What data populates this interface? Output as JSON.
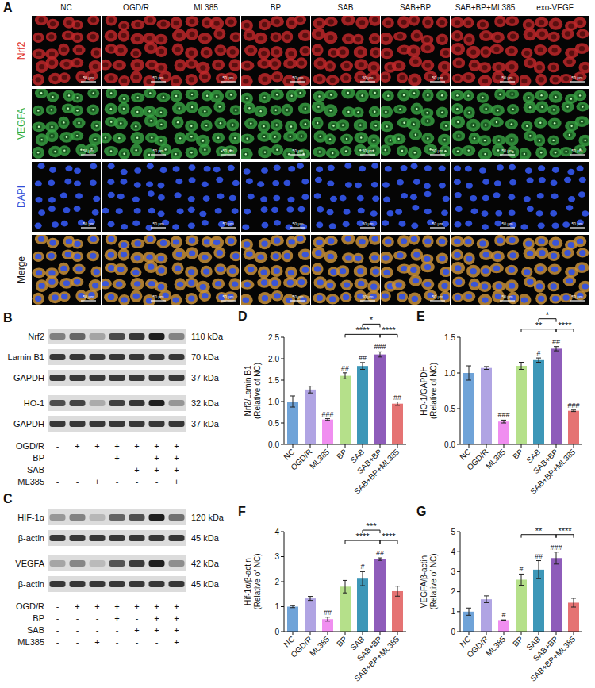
{
  "panel_a": {
    "letter": "A",
    "columns": [
      "NC",
      "OGD/R",
      "ML385",
      "BP",
      "SAB",
      "SAB+BP",
      "SAB+BP+ML385",
      "exo-VEGF"
    ],
    "rows": [
      {
        "label": "Nrf2",
        "color": "#e0302a"
      },
      {
        "label": "VEGFA",
        "color": "#2fae3a"
      },
      {
        "label": "DAPI",
        "color": "#2f4fd8"
      },
      {
        "label": "Merge",
        "color": "#111111"
      }
    ],
    "scale_bar": "50 μm"
  },
  "blot_panels": [
    {
      "letter": "B",
      "blots": [
        [
          {
            "label": "Nrf2",
            "kda": "110 kDa",
            "chart": 0
          },
          {
            "label": "Lamin B1",
            "kda": "70 kDa",
            "chart": null
          },
          {
            "label": "GAPDH",
            "kda": "37 kDa",
            "chart": null
          }
        ],
        [
          {
            "label": "HO-1",
            "kda": "32 kDa",
            "chart": 1
          },
          {
            "label": "GAPDH",
            "kda": "37 kDa",
            "chart": null
          }
        ]
      ],
      "treatments": [
        {
          "label": "OGD/R",
          "signs": [
            "-",
            "+",
            "+",
            "+",
            "+",
            "+",
            "+"
          ]
        },
        {
          "label": "BP",
          "signs": [
            "-",
            "-",
            "-",
            "+",
            "-",
            "+",
            "+"
          ]
        },
        {
          "label": "SAB",
          "signs": [
            "-",
            "-",
            "-",
            "-",
            "+",
            "+",
            "+"
          ]
        },
        {
          "label": "ML385",
          "signs": [
            "-",
            "-",
            "+",
            "-",
            "-",
            "-",
            "+"
          ]
        }
      ]
    },
    {
      "letter": "C",
      "blots": [
        [
          {
            "label": "HIF-1α",
            "kda": "120 kDa",
            "chart": 2
          },
          {
            "label": "β-actin",
            "kda": "45 kDa",
            "chart": null
          }
        ],
        [
          {
            "label": "VEGFA",
            "kda": "42 kDa",
            "chart": 3
          },
          {
            "label": "β-actin",
            "kda": "45 kDa",
            "chart": null
          }
        ]
      ],
      "treatments": [
        {
          "label": "OGD/R",
          "signs": [
            "-",
            "+",
            "+",
            "+",
            "+",
            "+",
            "+"
          ]
        },
        {
          "label": "BP",
          "signs": [
            "-",
            "-",
            "-",
            "+",
            "-",
            "+",
            "+"
          ]
        },
        {
          "label": "SAB",
          "signs": [
            "-",
            "-",
            "-",
            "-",
            "+",
            "+",
            "+"
          ]
        },
        {
          "label": "ML385",
          "signs": [
            "-",
            "-",
            "+",
            "-",
            "-",
            "-",
            "+"
          ]
        }
      ]
    }
  ],
  "chart_data": [
    {
      "panel": "D",
      "type": "bar",
      "categories": [
        "NC",
        "OGD/R",
        "ML385",
        "BP",
        "SAB",
        "SAB+BP",
        "SAB+BP+ML385"
      ],
      "values": [
        1.0,
        1.28,
        0.58,
        1.6,
        1.83,
        2.1,
        0.95
      ],
      "errors": [
        0.13,
        0.08,
        0.02,
        0.07,
        0.08,
        0.06,
        0.04
      ],
      "colors": [
        "#6fa3d8",
        "#b0a4e3",
        "#f08ef0",
        "#b5e08a",
        "#3d97b8",
        "#8e5cba",
        "#e57373"
      ],
      "ylabel": [
        "Nrf2/Lamin B1",
        "(Relative of NC)"
      ],
      "ylim": [
        0,
        2.5
      ],
      "yticks": [
        {
          "value": 0,
          "label": "0.0"
        },
        0.5,
        {
          "value": 1,
          "label": "1.0"
        },
        1.5,
        {
          "value": 2,
          "label": "2.0"
        },
        2.5
      ],
      "significance": [
        null,
        null,
        "###",
        "##",
        "##",
        "###",
        "##"
      ],
      "brackets": [
        {
          "from": 3,
          "to": 5,
          "label": "****"
        },
        {
          "from": 5,
          "to": 6,
          "label": "****"
        },
        {
          "from": 4,
          "to": 5,
          "label": "*"
        }
      ]
    },
    {
      "panel": "E",
      "type": "bar",
      "categories": [
        "NC",
        "OGD/R",
        "ML385",
        "BP",
        "SAB",
        "SAB+BP",
        "SAB+BP+ML385"
      ],
      "values": [
        1.0,
        1.07,
        0.32,
        1.1,
        1.18,
        1.34,
        0.47
      ],
      "errors": [
        0.1,
        0.02,
        0.02,
        0.05,
        0.03,
        0.03,
        0.01
      ],
      "colors": [
        "#6fa3d8",
        "#b0a4e3",
        "#f08ef0",
        "#b5e08a",
        "#3d97b8",
        "#8e5cba",
        "#e57373"
      ],
      "ylabel": [
        "HO-1/GAPDH",
        "(Relative of NC)"
      ],
      "ylim": [
        0,
        1.5
      ],
      "yticks": [
        {
          "value": 0,
          "label": "0.0"
        },
        0.5,
        {
          "value": 1,
          "label": "1.0"
        },
        1.5
      ],
      "significance": [
        null,
        null,
        "###",
        null,
        "#",
        "##",
        "###"
      ],
      "brackets": [
        {
          "from": 3,
          "to": 5,
          "label": "**"
        },
        {
          "from": 5,
          "to": 6,
          "label": "****"
        },
        {
          "from": 4,
          "to": 5,
          "label": "*"
        }
      ]
    },
    {
      "panel": "F",
      "type": "bar",
      "categories": [
        "NC",
        "OGD/R",
        "ML385",
        "BP",
        "SAB",
        "SAB+BP",
        "SAB+BP+ML385"
      ],
      "values": [
        1.0,
        1.33,
        0.5,
        1.8,
        2.12,
        2.9,
        1.62
      ],
      "errors": [
        0.04,
        0.08,
        0.08,
        0.25,
        0.28,
        0.05,
        0.2
      ],
      "colors": [
        "#6fa3d8",
        "#b0a4e3",
        "#f08ef0",
        "#b5e08a",
        "#3d97b8",
        "#8e5cba",
        "#e57373"
      ],
      "ylabel": [
        "Hif-1α/β-actin",
        "(Relative of NC)"
      ],
      "ylim": [
        0,
        4
      ],
      "yticks": [
        0,
        1,
        2,
        3,
        4
      ],
      "significance": [
        null,
        null,
        "##",
        null,
        "#",
        "##",
        null
      ],
      "brackets": [
        {
          "from": 3,
          "to": 5,
          "label": "****"
        },
        {
          "from": 5,
          "to": 6,
          "label": "****"
        },
        {
          "from": 4,
          "to": 5,
          "label": "***"
        }
      ]
    },
    {
      "panel": "G",
      "type": "bar",
      "categories": [
        "NC",
        "OGD/R",
        "ML385",
        "BP",
        "SAB",
        "SAB+BP",
        "SAB+BP+ML385"
      ],
      "values": [
        1.0,
        1.62,
        0.58,
        2.6,
        3.1,
        3.68,
        1.45
      ],
      "errors": [
        0.18,
        0.17,
        0.01,
        0.28,
        0.45,
        0.3,
        0.22
      ],
      "colors": [
        "#6fa3d8",
        "#b0a4e3",
        "#f08ef0",
        "#b5e08a",
        "#3d97b8",
        "#8e5cba",
        "#e57373"
      ],
      "ylabel": [
        "VEGFA/β-actin",
        "(Relative of NC)"
      ],
      "ylim": [
        0,
        5
      ],
      "yticks": [
        0,
        1,
        2,
        3,
        4,
        5
      ],
      "significance": [
        null,
        null,
        "#",
        "#",
        "##",
        "###",
        null
      ],
      "brackets": [
        {
          "from": 3,
          "to": 5,
          "label": "**"
        },
        {
          "from": 5,
          "to": 6,
          "label": "****"
        }
      ]
    }
  ]
}
